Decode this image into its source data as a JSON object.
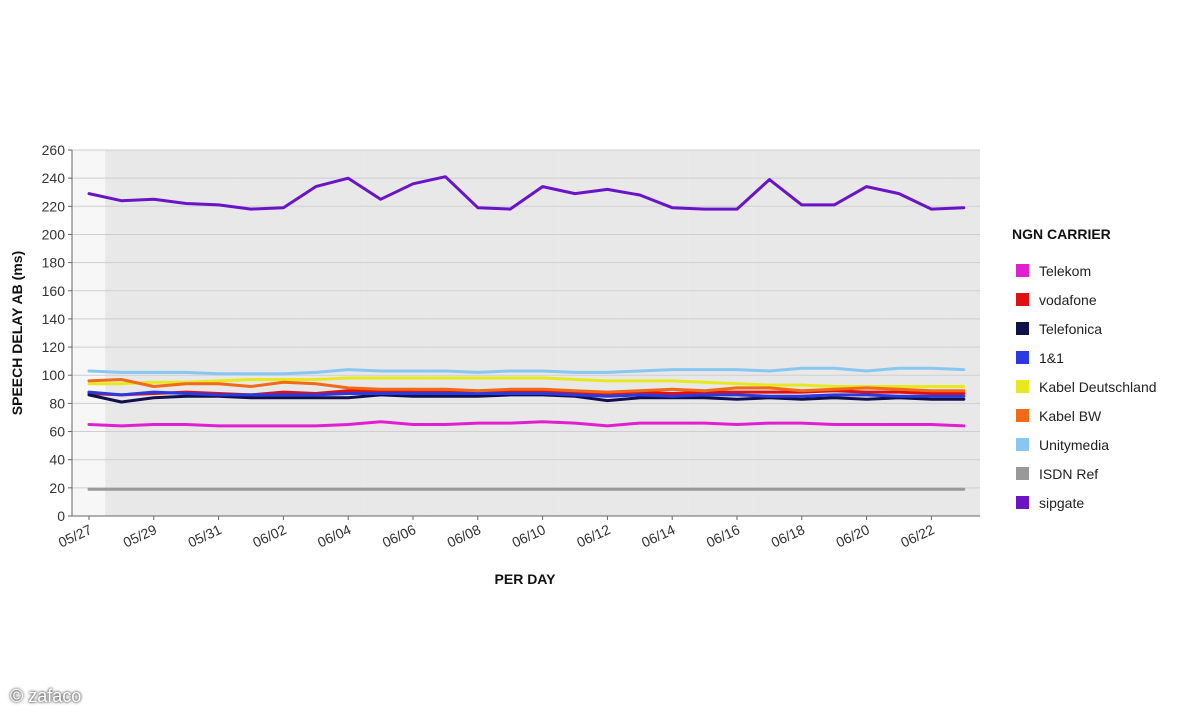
{
  "watermark": "© zafaco",
  "legend": {
    "title": "NGN CARRIER"
  },
  "chart_data": {
    "type": "line",
    "title": "",
    "xlabel": "PER DAY",
    "ylabel": "SPEECH DELAY AB (ms)",
    "ylim": [
      0,
      260
    ],
    "yticks": [
      0,
      20,
      40,
      60,
      80,
      100,
      120,
      140,
      160,
      180,
      200,
      220,
      240,
      260
    ],
    "grid": true,
    "legend_position": "right",
    "x": [
      "05/27",
      "05/28",
      "05/29",
      "05/30",
      "05/31",
      "06/01",
      "06/02",
      "06/03",
      "06/04",
      "06/05",
      "06/06",
      "06/07",
      "06/08",
      "06/09",
      "06/10",
      "06/11",
      "06/12",
      "06/13",
      "06/14",
      "06/15",
      "06/16",
      "06/17",
      "06/18",
      "06/19",
      "06/20",
      "06/21",
      "06/22",
      "06/23"
    ],
    "xtick_labels": [
      "05/27",
      "05/29",
      "05/31",
      "06/02",
      "06/04",
      "06/06",
      "06/08",
      "06/10",
      "06/12",
      "06/14",
      "06/16",
      "06/18",
      "06/20",
      "06/22"
    ],
    "series": [
      {
        "name": "Telekom",
        "color": "#e020d0",
        "values": [
          65,
          64,
          65,
          65,
          64,
          64,
          64,
          64,
          65,
          67,
          65,
          65,
          66,
          66,
          67,
          66,
          64,
          66,
          66,
          66,
          65,
          66,
          66,
          65,
          65,
          65,
          65,
          64
        ]
      },
      {
        "name": "vodafone",
        "color": "#e01010",
        "values": [
          87,
          86,
          87,
          88,
          87,
          86,
          88,
          87,
          89,
          89,
          88,
          88,
          88,
          89,
          89,
          88,
          87,
          88,
          87,
          88,
          88,
          88,
          88,
          89,
          88,
          88,
          87,
          87
        ]
      },
      {
        "name": "Telefonica",
        "color": "#10104a",
        "values": [
          86,
          81,
          84,
          85,
          85,
          84,
          84,
          84,
          84,
          86,
          85,
          85,
          85,
          86,
          86,
          85,
          82,
          84,
          84,
          84,
          83,
          84,
          83,
          84,
          83,
          84,
          83,
          83
        ]
      },
      {
        "name": "1&1",
        "color": "#2a3ae0",
        "values": [
          88,
          86,
          88,
          87,
          86,
          86,
          86,
          86,
          87,
          87,
          87,
          87,
          87,
          87,
          87,
          86,
          85,
          86,
          85,
          86,
          86,
          85,
          85,
          86,
          86,
          85,
          85,
          85
        ]
      },
      {
        "name": "Kabel Deutschland",
        "color": "#e8e820",
        "values": [
          94,
          94,
          95,
          95,
          96,
          97,
          97,
          97,
          98,
          98,
          98,
          98,
          98,
          98,
          98,
          97,
          96,
          96,
          96,
          95,
          94,
          93,
          93,
          92,
          92,
          92,
          92,
          92
        ]
      },
      {
        "name": "Kabel BW",
        "color": "#f06a18",
        "values": [
          96,
          97,
          92,
          94,
          94,
          92,
          95,
          94,
          91,
          90,
          90,
          90,
          89,
          90,
          90,
          89,
          88,
          89,
          90,
          89,
          91,
          91,
          89,
          90,
          91,
          90,
          89,
          89
        ]
      },
      {
        "name": "Unitymedia",
        "color": "#88c8f0",
        "values": [
          103,
          102,
          102,
          102,
          101,
          101,
          101,
          102,
          104,
          103,
          103,
          103,
          102,
          103,
          103,
          102,
          102,
          103,
          104,
          104,
          104,
          103,
          105,
          105,
          103,
          105,
          105,
          104
        ]
      },
      {
        "name": "ISDN Ref",
        "color": "#999999",
        "values": [
          19,
          19,
          19,
          19,
          19,
          19,
          19,
          19,
          19,
          19,
          19,
          19,
          19,
          19,
          19,
          19,
          19,
          19,
          19,
          19,
          19,
          19,
          19,
          19,
          19,
          19,
          19,
          19
        ]
      },
      {
        "name": "sipgate",
        "color": "#6a14c8",
        "values": [
          229,
          224,
          225,
          222,
          221,
          218,
          219,
          234,
          240,
          225,
          236,
          241,
          219,
          218,
          234,
          229,
          232,
          228,
          219,
          218,
          218,
          239,
          221,
          221,
          234,
          229,
          218,
          219
        ]
      }
    ]
  }
}
